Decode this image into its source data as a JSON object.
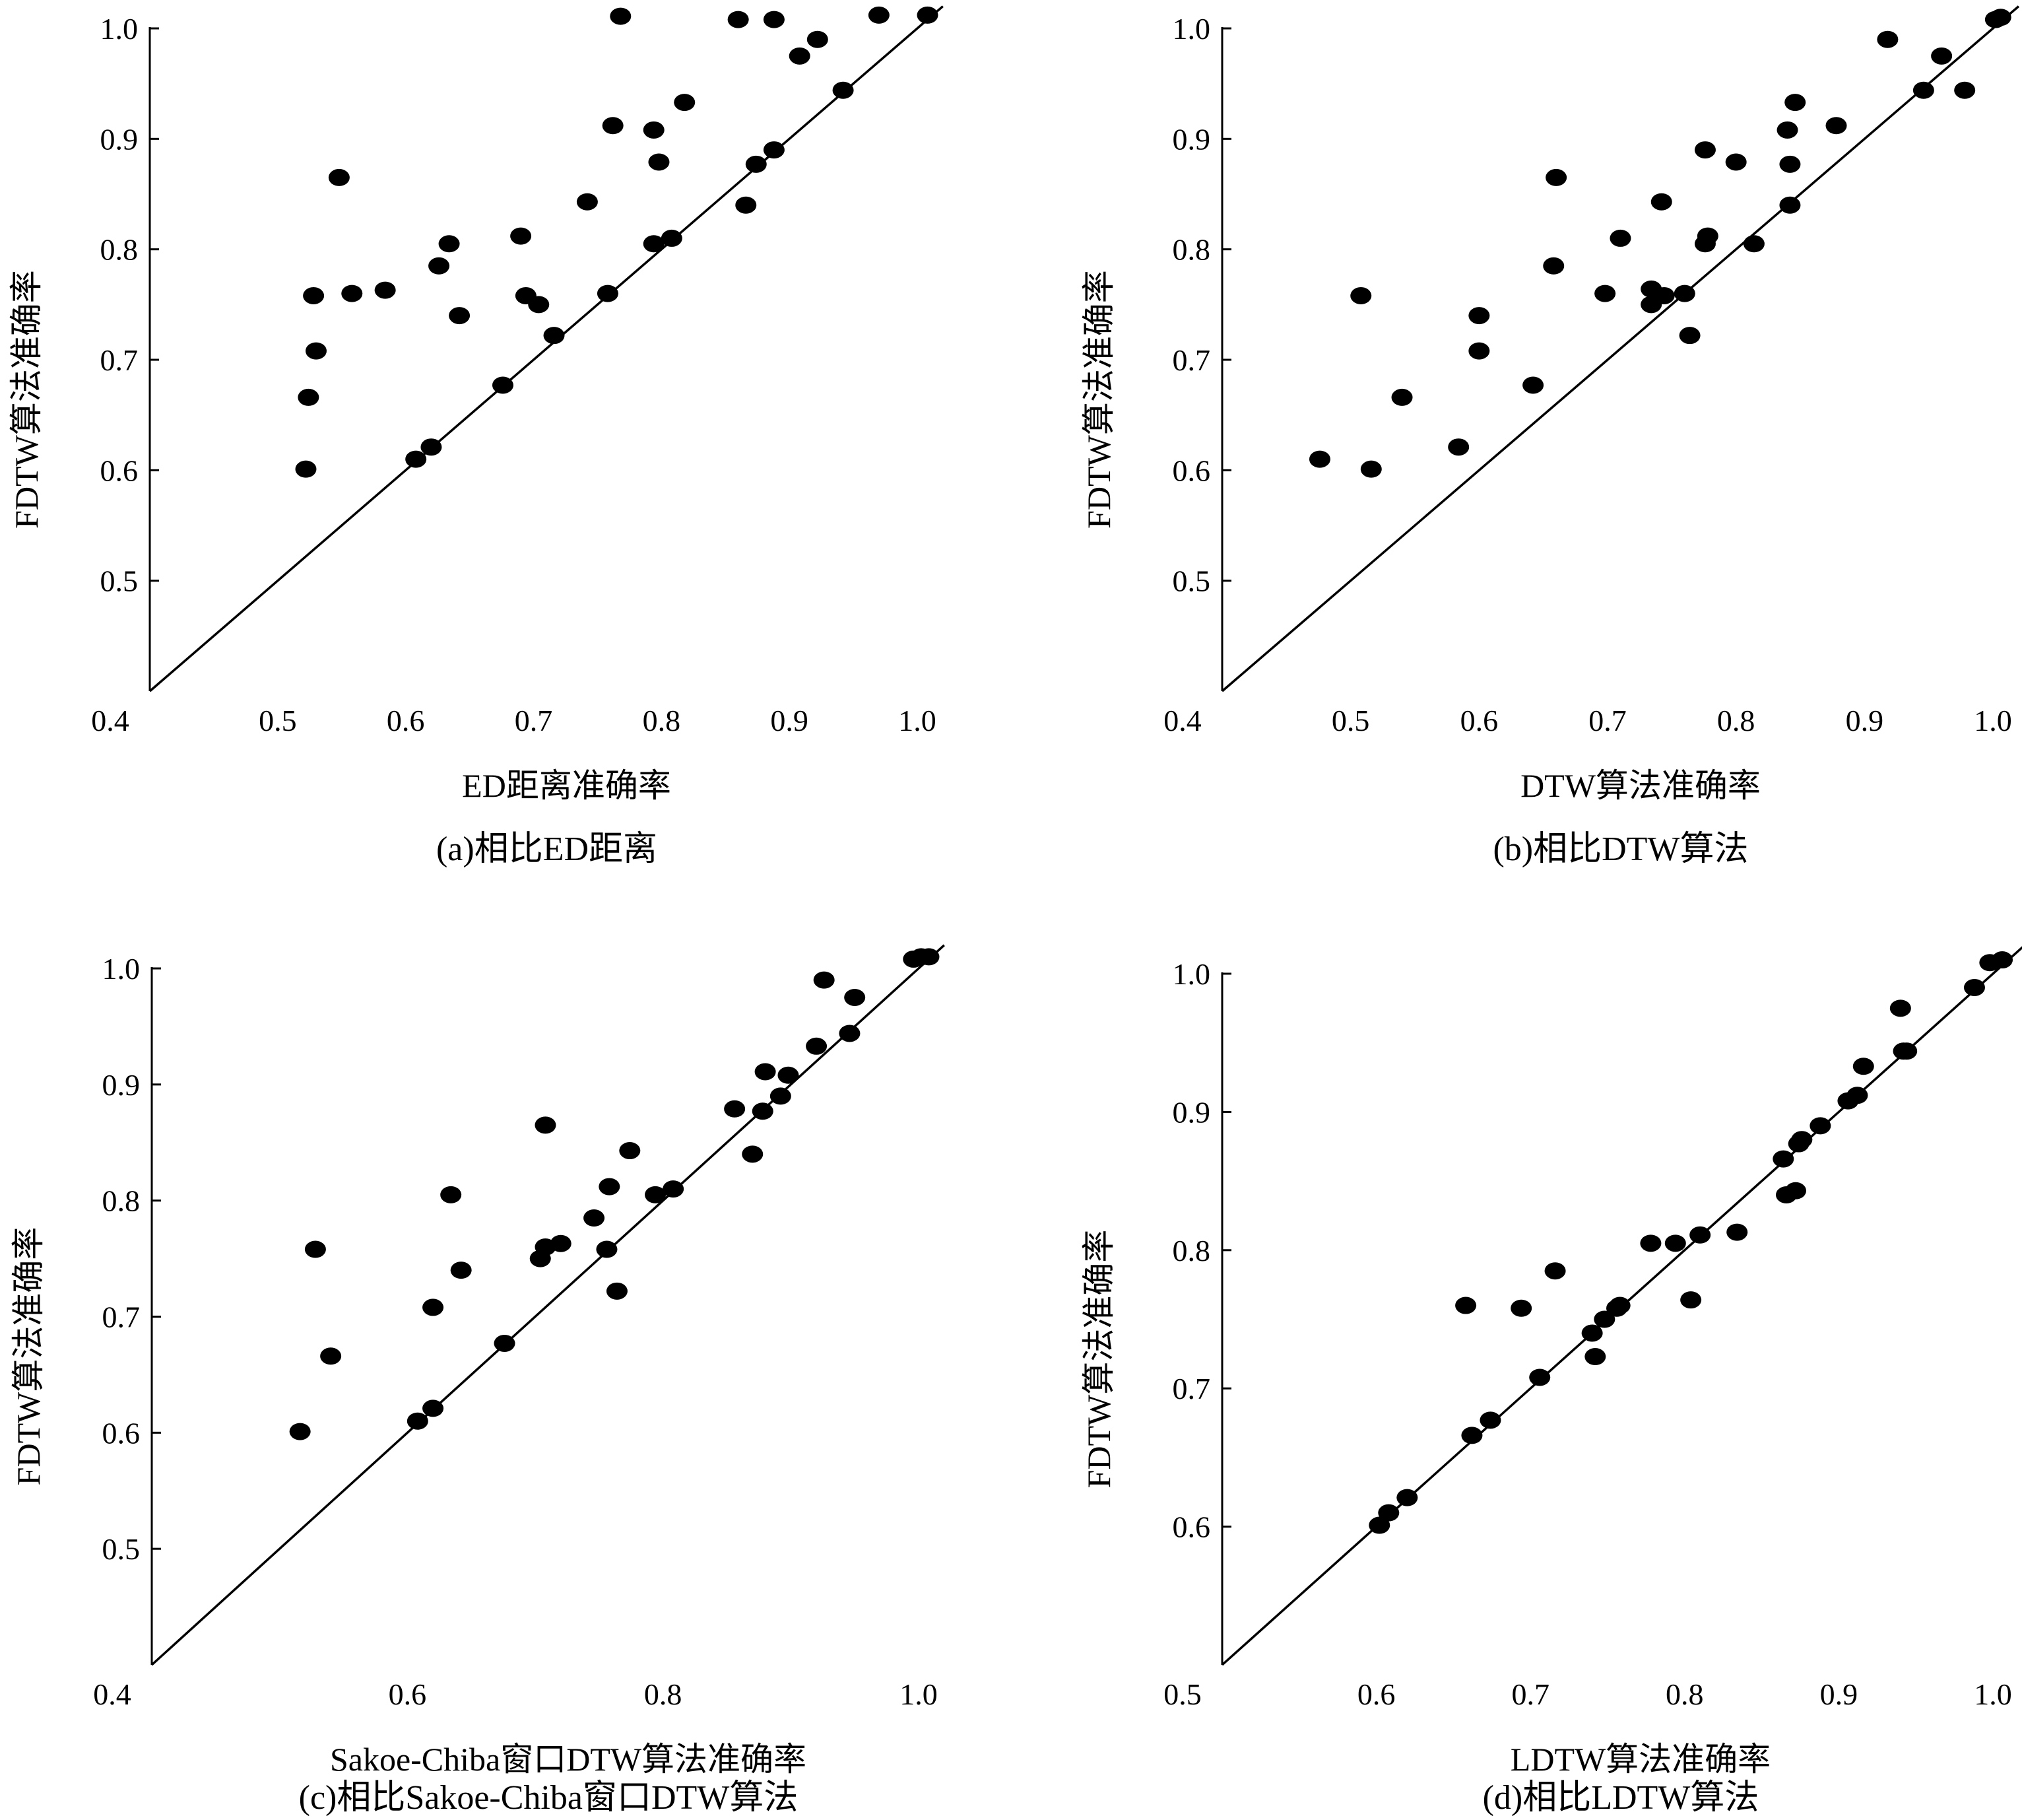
{
  "chart_data": [
    {
      "type": "scatter",
      "caption": "(a)相比ED距离",
      "xlabel": "ED距离准确率",
      "ylabel": "FDTW算法准确率",
      "xlim": [
        0.4,
        1.0
      ],
      "ylim": [
        0.4,
        1.0
      ],
      "xticks": [
        "0.4",
        "0.5",
        "0.6",
        "0.7",
        "0.8",
        "0.9",
        "1.0"
      ],
      "yticks": [
        "0.5",
        "0.6",
        "0.7",
        "0.8",
        "0.9",
        "1.0"
      ],
      "reference_line": "y = x",
      "points": [
        [
          0.522,
          0.601
        ],
        [
          0.524,
          0.666
        ],
        [
          0.528,
          0.758
        ],
        [
          0.53,
          0.708
        ],
        [
          0.548,
          0.865
        ],
        [
          0.558,
          0.76
        ],
        [
          0.584,
          0.763
        ],
        [
          0.608,
          0.61
        ],
        [
          0.62,
          0.621
        ],
        [
          0.626,
          0.785
        ],
        [
          0.634,
          0.805
        ],
        [
          0.642,
          0.74
        ],
        [
          0.69,
          0.812
        ],
        [
          0.694,
          0.758
        ],
        [
          0.704,
          0.75
        ],
        [
          0.716,
          0.722
        ],
        [
          0.676,
          0.677
        ],
        [
          0.742,
          0.843
        ],
        [
          0.758,
          0.76
        ],
        [
          0.762,
          0.912
        ],
        [
          0.768,
          1.011
        ],
        [
          0.794,
          0.908
        ],
        [
          0.794,
          0.805
        ],
        [
          0.798,
          0.879
        ],
        [
          0.808,
          0.81
        ],
        [
          0.818,
          0.933
        ],
        [
          0.86,
          1.008
        ],
        [
          0.866,
          0.84
        ],
        [
          0.874,
          0.877
        ],
        [
          0.888,
          1.008
        ],
        [
          0.888,
          0.89
        ],
        [
          0.908,
          0.975
        ],
        [
          0.922,
          0.99
        ],
        [
          0.942,
          0.944
        ],
        [
          0.97,
          1.012
        ],
        [
          1.008,
          1.012
        ]
      ]
    },
    {
      "type": "scatter",
      "caption": "(b)相比DTW算法",
      "xlabel": "DTW算法准确率",
      "ylabel": "FDTW算法准确率",
      "xlim": [
        0.4,
        1.0
      ],
      "ylim": [
        0.4,
        1.0
      ],
      "xticks": [
        "0.4",
        "0.5",
        "0.6",
        "0.7",
        "0.8",
        "0.9",
        "1.0"
      ],
      "yticks": [
        "0.5",
        "0.6",
        "0.7",
        "0.8",
        "0.9",
        "1.0"
      ],
      "reference_line": "y = x",
      "points": [
        [
          0.476,
          0.61
        ],
        [
          0.508,
          0.758
        ],
        [
          0.516,
          0.601
        ],
        [
          0.54,
          0.666
        ],
        [
          0.584,
          0.621
        ],
        [
          0.6,
          0.74
        ],
        [
          0.6,
          0.708
        ],
        [
          0.642,
          0.677
        ],
        [
          0.658,
          0.785
        ],
        [
          0.66,
          0.865
        ],
        [
          0.698,
          0.76
        ],
        [
          0.71,
          0.81
        ],
        [
          0.734,
          0.764
        ],
        [
          0.734,
          0.75
        ],
        [
          0.742,
          0.843
        ],
        [
          0.744,
          0.758
        ],
        [
          0.76,
          0.76
        ],
        [
          0.764,
          0.722
        ],
        [
          0.776,
          0.805
        ],
        [
          0.778,
          0.812
        ],
        [
          0.776,
          0.89
        ],
        [
          0.8,
          0.879
        ],
        [
          0.814,
          0.805
        ],
        [
          0.84,
          0.908
        ],
        [
          0.842,
          0.84
        ],
        [
          0.842,
          0.877
        ],
        [
          0.846,
          0.933
        ],
        [
          0.878,
          0.912
        ],
        [
          0.918,
          0.99
        ],
        [
          0.946,
          0.944
        ],
        [
          0.96,
          0.975
        ],
        [
          0.978,
          0.944
        ],
        [
          1.002,
          1.008
        ],
        [
          1.006,
          1.01
        ]
      ]
    },
    {
      "type": "scatter",
      "caption": "(c)相比Sakoe-Chiba窗口DTW算法",
      "xlabel": "Sakoe-Chiba窗口DTW算法准确率",
      "ylabel": "FDTW算法准确率",
      "xlim": [
        0.4,
        1.0
      ],
      "ylim": [
        0.4,
        1.0
      ],
      "xticks": [
        "0.4",
        "0.6",
        "0.8",
        "1.0"
      ],
      "yticks": [
        "0.5",
        "0.6",
        "0.7",
        "0.8",
        "0.9",
        "1.0"
      ],
      "reference_line": "y = x",
      "points": [
        [
          0.516,
          0.601
        ],
        [
          0.528,
          0.758
        ],
        [
          0.54,
          0.666
        ],
        [
          0.608,
          0.61
        ],
        [
          0.62,
          0.621
        ],
        [
          0.62,
          0.708
        ],
        [
          0.634,
          0.805
        ],
        [
          0.642,
          0.74
        ],
        [
          0.676,
          0.677
        ],
        [
          0.704,
          0.75
        ],
        [
          0.708,
          0.76
        ],
        [
          0.708,
          0.865
        ],
        [
          0.72,
          0.763
        ],
        [
          0.746,
          0.785
        ],
        [
          0.756,
          0.758
        ],
        [
          0.758,
          0.812
        ],
        [
          0.764,
          0.722
        ],
        [
          0.774,
          0.843
        ],
        [
          0.794,
          0.805
        ],
        [
          0.808,
          0.81
        ],
        [
          0.856,
          0.879
        ],
        [
          0.87,
          0.84
        ],
        [
          0.878,
          0.877
        ],
        [
          0.88,
          0.911
        ],
        [
          0.892,
          0.89
        ],
        [
          0.898,
          0.908
        ],
        [
          0.92,
          0.933
        ],
        [
          0.926,
          0.99
        ],
        [
          0.946,
          0.944
        ],
        [
          0.95,
          0.975
        ],
        [
          0.996,
          1.008
        ],
        [
          1.002,
          1.01
        ],
        [
          1.008,
          1.01
        ]
      ]
    },
    {
      "type": "scatter",
      "caption": "(d)相比LDTW算法",
      "xlabel": "LDTW算法准确率",
      "ylabel": "FDTW算法准确率",
      "xlim": [
        0.5,
        1.0
      ],
      "ylim": [
        0.5,
        1.0
      ],
      "xticks": [
        "0.5",
        "0.6",
        "0.7",
        "0.8",
        "0.9",
        "1.0"
      ],
      "yticks": [
        "0.6",
        "0.7",
        "0.8",
        "0.9",
        "1.0"
      ],
      "reference_line": "y = x",
      "points": [
        [
          0.602,
          0.601
        ],
        [
          0.608,
          0.61
        ],
        [
          0.62,
          0.621
        ],
        [
          0.662,
          0.666
        ],
        [
          0.674,
          0.677
        ],
        [
          0.658,
          0.76
        ],
        [
          0.694,
          0.758
        ],
        [
          0.706,
          0.708
        ],
        [
          0.716,
          0.785
        ],
        [
          0.74,
          0.74
        ],
        [
          0.742,
          0.723
        ],
        [
          0.748,
          0.75
        ],
        [
          0.756,
          0.758
        ],
        [
          0.758,
          0.76
        ],
        [
          0.778,
          0.805
        ],
        [
          0.794,
          0.805
        ],
        [
          0.804,
          0.764
        ],
        [
          0.81,
          0.811
        ],
        [
          0.834,
          0.813
        ],
        [
          0.864,
          0.866
        ],
        [
          0.866,
          0.84
        ],
        [
          0.872,
          0.843
        ],
        [
          0.874,
          0.877
        ],
        [
          0.876,
          0.88
        ],
        [
          0.888,
          0.89
        ],
        [
          0.906,
          0.908
        ],
        [
          0.912,
          0.912
        ],
        [
          0.916,
          0.933
        ],
        [
          0.94,
          0.975
        ],
        [
          0.942,
          0.944
        ],
        [
          0.944,
          0.944
        ],
        [
          0.988,
          0.99
        ],
        [
          0.998,
          1.008
        ],
        [
          1.006,
          1.01
        ]
      ]
    }
  ]
}
